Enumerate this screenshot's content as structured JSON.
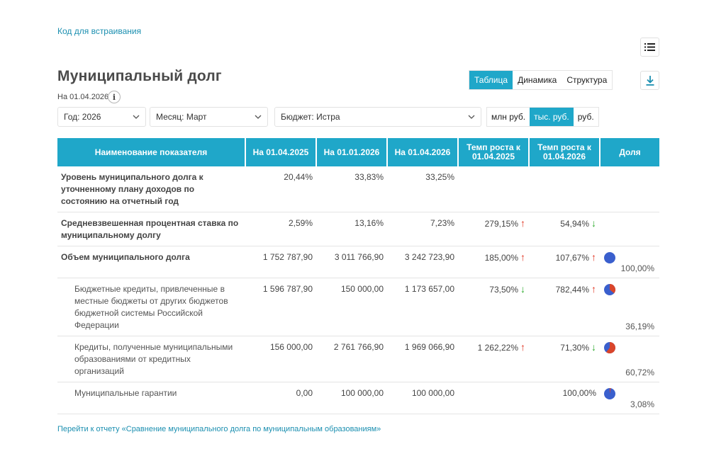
{
  "embed_link": "Код для встраивания",
  "title": "Муниципальный долг",
  "date_label": "На 01.04.2026",
  "info_icon": "i",
  "view_tabs": [
    {
      "label": "Таблица",
      "active": true
    },
    {
      "label": "Динамика",
      "active": false
    },
    {
      "label": "Структура",
      "active": false
    }
  ],
  "filters": {
    "year": "Год: 2026",
    "month": "Месяц: Март",
    "budget": "Бюджет: Истра"
  },
  "units": [
    {
      "label": "млн руб.",
      "active": false
    },
    {
      "label": "тыс. руб.",
      "active": true
    },
    {
      "label": "руб.",
      "active": false
    }
  ],
  "table": {
    "headers": [
      "Наименование показателя",
      "На 01.04.2025",
      "На 01.01.2026",
      "На 01.04.2026",
      "Темп роста к 01.04.2025",
      "Темп роста к 01.04.2026",
      "Доля"
    ],
    "rows": [
      {
        "name": "Уровень муниципального долга к уточненному плану доходов по состоянию на отчетный год",
        "v1": "20,44%",
        "v2": "33,83%",
        "v3": "33,25%",
        "g1": "",
        "g1_dir": "",
        "g2": "",
        "g2_dir": "",
        "share": "",
        "share_fraction": null
      },
      {
        "name": "Средневзвешенная процентная ставка по муниципальному долгу",
        "v1": "2,59%",
        "v2": "13,16%",
        "v3": "7,23%",
        "g1": "279,15%",
        "g1_dir": "up",
        "g2": "54,94%",
        "g2_dir": "down",
        "share": "",
        "share_fraction": null
      },
      {
        "name": "Объем муниципального долга",
        "v1": "1 752 787,90",
        "v2": "3 011 766,90",
        "v3": "3 242 723,90",
        "g1": "185,00%",
        "g1_dir": "up",
        "g2": "107,67%",
        "g2_dir": "up",
        "share": "100,00%",
        "share_fraction": 1.0
      },
      {
        "name": "Бюджетные кредиты, привлеченные в местные бюджеты от других бюджетов бюджетной системы Российской Федерации",
        "v1": "1 596 787,90",
        "v2": "150 000,00",
        "v3": "1 173 657,00",
        "g1": "73,50%",
        "g1_dir": "down",
        "g2": "782,44%",
        "g2_dir": "up",
        "share": "36,19%",
        "share_fraction": 0.3619
      },
      {
        "name": "Кредиты, полученные муниципальными образованиями от кредитных организаций",
        "v1": "156 000,00",
        "v2": "2 761 766,90",
        "v3": "1 969 066,90",
        "g1": "1 262,22%",
        "g1_dir": "up",
        "g2": "71,30%",
        "g2_dir": "down",
        "share": "60,72%",
        "share_fraction": 0.6072
      },
      {
        "name": "Муниципальные гарантии",
        "v1": "0,00",
        "v2": "100 000,00",
        "v3": "100 000,00",
        "g1": "",
        "g1_dir": "",
        "g2": "100,00%",
        "g2_dir": "",
        "share": "3,08%",
        "share_fraction": 0.0308
      }
    ]
  },
  "colors": {
    "accent": "#1fa7c9",
    "up": "#e1331f",
    "down": "#2eab2e",
    "pie_blue": "#3a5fcd",
    "pie_red": "#d9452b"
  },
  "report_link": "Перейти к отчету «Сравнение муниципального долга по муниципальным образованиям»"
}
